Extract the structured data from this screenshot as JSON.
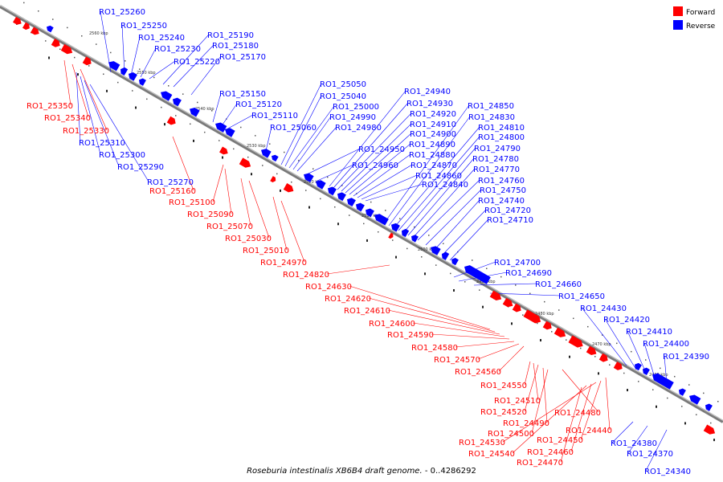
{
  "caption": {
    "title": "Roseburia intestinalis XB6B4 draft genome.",
    "range": " - 0..4286292"
  },
  "legend": {
    "forward_label": "Forward",
    "reverse_label": "Reverse",
    "forward_color": "#ff0000",
    "reverse_color": "#0000ff"
  },
  "scale_ticks": [
    "2560 kbp",
    "2550 kbp",
    "2540 kbp",
    "2530 kbp",
    "2520 kbp",
    "2510 kbp",
    "2500 kbp",
    "2490 kbp",
    "2480 kbp",
    "2470 kbp",
    "2460 kbp"
  ],
  "reverse_labels": [
    "RO1_25260",
    "RO1_25250",
    "RO1_25240",
    "RO1_25230",
    "RO1_25220",
    "RO1_25190",
    "RO1_25180",
    "RO1_25170",
    "RO1_25150",
    "RO1_25120",
    "RO1_25110",
    "RO1_25060",
    "RO1_25050",
    "RO1_25040",
    "RO1_25000",
    "RO1_24990",
    "RO1_24980",
    "RO1_24950",
    "RO1_24960",
    "RO1_24940",
    "RO1_24930",
    "RO1_24920",
    "RO1_24910",
    "RO1_24900",
    "RO1_24890",
    "RO1_24880",
    "RO1_24870",
    "RO1_24860",
    "RO1_24840",
    "RO1_24850",
    "RO1_24830",
    "RO1_24810",
    "RO1_24800",
    "RO1_24790",
    "RO1_24780",
    "RO1_24770",
    "RO1_24760",
    "RO1_24750",
    "RO1_24740",
    "RO1_24720",
    "RO1_24710",
    "RO1_24700",
    "RO1_24690",
    "RO1_24660",
    "RO1_24650",
    "RO1_24430",
    "RO1_24420",
    "RO1_24410",
    "RO1_24400",
    "RO1_24390",
    "RO1_25310",
    "RO1_25300",
    "RO1_25290",
    "RO1_25270",
    "RO1_24380",
    "RO1_24370",
    "RO1_24340"
  ],
  "forward_labels": [
    "RO1_25350",
    "RO1_25340",
    "RO1_25330",
    "RO1_25160",
    "RO1_25100",
    "RO1_25090",
    "RO1_25070",
    "RO1_25030",
    "RO1_25010",
    "RO1_24970",
    "RO1_24820",
    "RO1_24630",
    "RO1_24620",
    "RO1_24610",
    "RO1_24600",
    "RO1_24590",
    "RO1_24580",
    "RO1_24570",
    "RO1_24560",
    "RO1_24550",
    "RO1_24510",
    "RO1_24520",
    "RO1_24480",
    "RO1_24490",
    "RO1_24500",
    "RO1_24440",
    "RO1_24450",
    "RO1_24530",
    "RO1_24460",
    "RO1_24540",
    "RO1_24470"
  ]
}
